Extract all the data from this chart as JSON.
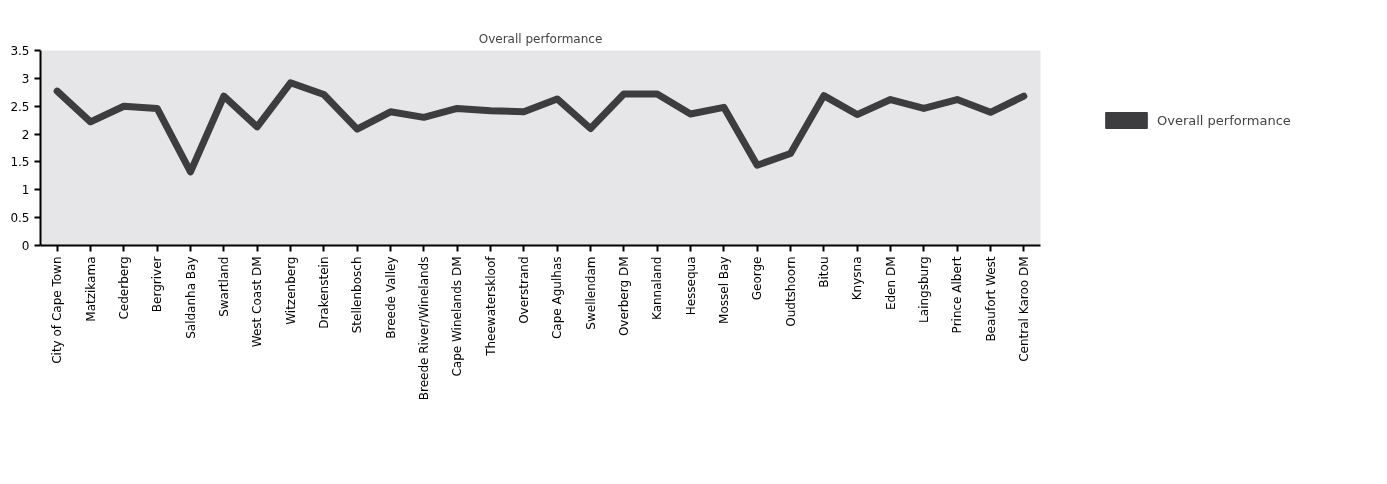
{
  "chart_data": {
    "type": "line",
    "title": "Overall performance",
    "categories": [
      "City of Cape Town",
      "Matzikama",
      "Cederberg",
      "Bergriver",
      "Saldanha Bay",
      "Swartland",
      "West Coast DM",
      "Witzenberg",
      "Drakenstein",
      "Stellenbosch",
      "Breede Valley",
      "Breede River/Winelands",
      "Cape Winelands DM",
      "Theewaterskloof",
      "Overstrand",
      "Cape Agulhas",
      "Swellendam",
      "Overberg DM",
      "Kannaland",
      "Hessequa",
      "Mossel Bay",
      "George",
      "Oudtshoorn",
      "Bitou",
      "Knysna",
      "Eden DM",
      "Laingsburg",
      "Prince Albert",
      "Beaufort West",
      "Central Karoo DM"
    ],
    "series": [
      {
        "name": "Overall performance",
        "color": "#3d3d3f",
        "values": [
          2.77,
          2.22,
          2.5,
          2.46,
          1.32,
          2.68,
          2.13,
          2.92,
          2.71,
          2.09,
          2.4,
          2.3,
          2.46,
          2.42,
          2.4,
          2.63,
          2.1,
          2.72,
          2.72,
          2.36,
          2.48,
          1.44,
          1.65,
          2.69,
          2.35,
          2.62,
          2.46,
          2.62,
          2.39,
          2.68
        ]
      }
    ],
    "ylim": [
      0,
      3.5
    ],
    "yticks": [
      0,
      0.5,
      1,
      1.5,
      2,
      2.5,
      3,
      3.5
    ],
    "legend": "right",
    "marker": "none",
    "line_style": "solid"
  }
}
